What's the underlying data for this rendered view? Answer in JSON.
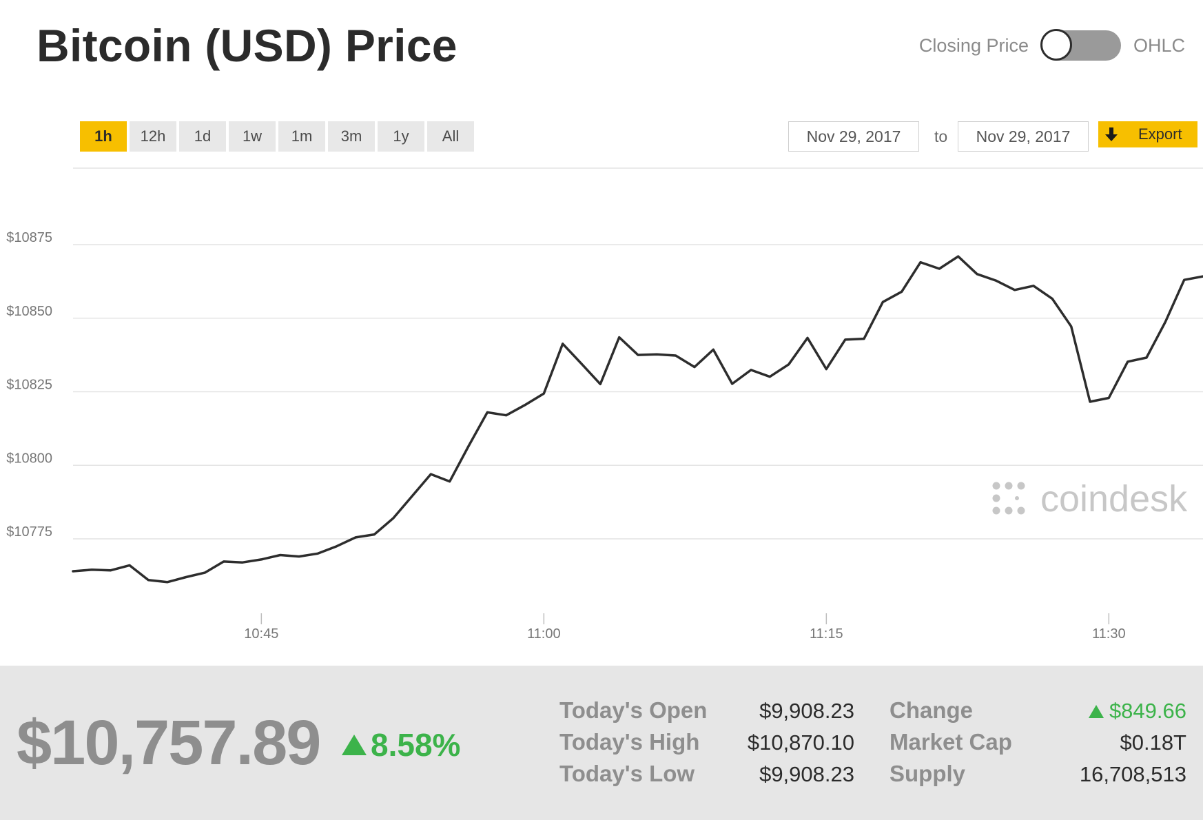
{
  "header": {
    "title": "Bitcoin (USD) Price",
    "toggle": {
      "left_label": "Closing Price",
      "right_label": "OHLC",
      "on": false
    }
  },
  "toolbar": {
    "ranges": [
      "1h",
      "12h",
      "1d",
      "1w",
      "1m",
      "3m",
      "1y",
      "All"
    ],
    "active_range": "1h",
    "date_from": "Nov 29, 2017",
    "date_to_label": "to",
    "date_to": "Nov 29, 2017",
    "export_label": "Export"
  },
  "colors": {
    "accent": "#f7bf00",
    "up": "#3cb34a",
    "line": "#2d2d2d"
  },
  "chart_data": {
    "type": "line",
    "y_tick_labels": [
      "$10875",
      "$10850",
      "$10825",
      "$10800",
      "$10775"
    ],
    "y_ticks": [
      10875,
      10850,
      10825,
      10800,
      10775
    ],
    "x_tick_labels": [
      "10:45",
      "11:00",
      "11:15",
      "11:30"
    ],
    "x_ticks": [
      45,
      60,
      75,
      90
    ],
    "xlim": [
      35,
      95
    ],
    "ylim": [
      10750,
      10900
    ],
    "grid": true,
    "watermark": "coindesk",
    "series": [
      {
        "x": [
          35,
          36,
          37,
          38,
          39,
          40,
          41,
          42,
          43,
          44,
          45,
          46,
          47,
          48,
          49,
          50,
          51,
          52,
          53,
          54,
          55,
          56,
          57,
          58,
          59,
          60,
          61,
          62,
          63,
          64,
          65,
          66,
          67,
          68,
          69,
          70,
          71,
          72,
          73,
          74,
          75,
          76,
          77,
          78,
          79,
          80,
          81,
          82,
          83,
          84,
          85,
          86,
          87,
          88,
          89,
          90,
          91,
          92,
          93,
          94,
          95
        ],
        "values": [
          10764,
          10764.5,
          10764.3,
          10766,
          10761,
          10760.3,
          10762,
          10763.5,
          10767.3,
          10767,
          10768,
          10769.5,
          10769,
          10770,
          10772.5,
          10775.5,
          10776.5,
          10782,
          10789.5,
          10797,
          10794.5,
          10806.5,
          10818,
          10817,
          10820.5,
          10824.4,
          10841.3,
          10834.5,
          10827.6,
          10843.5,
          10837.5,
          10837.7,
          10837.3,
          10833.4,
          10839.3,
          10827.7,
          10832.4,
          10830.1,
          10834.3,
          10843.3,
          10832.7,
          10842.7,
          10843,
          10855.5,
          10859,
          10869,
          10866.8,
          10871,
          10865,
          10862.8,
          10859.6,
          10861,
          10856.6,
          10847.2,
          10821.6,
          10822.9,
          10835.2,
          10836.6,
          10848.7,
          10863,
          10864.2
        ]
      }
    ]
  },
  "stats": {
    "price": "$10,757.89",
    "change_pct": "8.58%",
    "rows": [
      {
        "label": "Today's Open",
        "value": "$9,908.23"
      },
      {
        "label": "Today's High",
        "value": "$10,870.10"
      },
      {
        "label": "Today's Low",
        "value": "$9,908.23"
      }
    ],
    "rows2": [
      {
        "label": "Change",
        "value": "$849.66"
      },
      {
        "label": "Market Cap",
        "value": "$0.18T"
      },
      {
        "label": "Supply",
        "value": "16,708,513"
      }
    ]
  }
}
